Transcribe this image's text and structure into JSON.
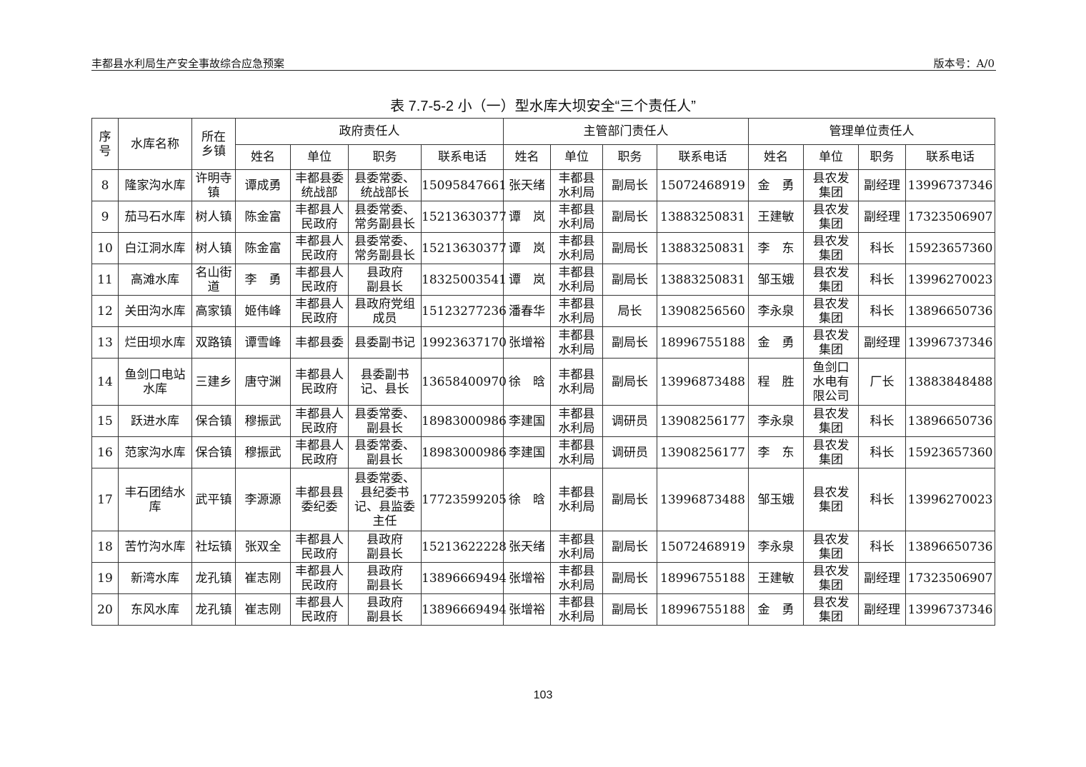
{
  "header": {
    "left": "丰都县水利局生产安全事故综合应急预案",
    "right": "版本号：A/0"
  },
  "title": "表 7.7-5-2  小（一）型水库大坝安全“三个责任人”",
  "columns": {
    "seq": "序\n号",
    "reservoir": "水库名称",
    "town": "所在\n乡镇",
    "groups": [
      "政府责任人",
      "主管部门责任人",
      "管理单位责任人"
    ],
    "sub": [
      "姓名",
      "单位",
      "职务",
      "联系电话"
    ]
  },
  "rows": [
    [
      "8",
      "隆家沟水库",
      "许明寺\n镇",
      "谭成勇",
      "丰都县委\n统战部",
      "县委常委、\n统战部长",
      "15095847661",
      "张天绪",
      "丰都县\n水利局",
      "副局长",
      "15072468919",
      "金　勇",
      "县农发\n集团",
      "副经理",
      "13996737346"
    ],
    [
      "9",
      "茄马石水库",
      "树人镇",
      "陈金富",
      "丰都县人\n民政府",
      "县委常委、\n常务副县长",
      "15213630377",
      "谭　岚",
      "丰都县\n水利局",
      "副局长",
      "13883250831",
      "王建敏",
      "县农发\n集团",
      "副经理",
      "17323506907"
    ],
    [
      "10",
      "白江洞水库",
      "树人镇",
      "陈金富",
      "丰都县人\n民政府",
      "县委常委、\n常务副县长",
      "15213630377",
      "谭　岚",
      "丰都县\n水利局",
      "副局长",
      "13883250831",
      "李　东",
      "县农发\n集团",
      "科长",
      "15923657360"
    ],
    [
      "11",
      "高滩水库",
      "名山街\n道",
      "李　勇",
      "丰都县人\n民政府",
      "县政府\n副县长",
      "18325003541",
      "谭　岚",
      "丰都县\n水利局",
      "副局长",
      "13883250831",
      "邹玉娥",
      "县农发\n集团",
      "科长",
      "13996270023"
    ],
    [
      "12",
      "关田沟水库",
      "高家镇",
      "姬伟峰",
      "丰都县人\n民政府",
      "县政府党组\n成员",
      "15123277236",
      "潘春华",
      "丰都县\n水利局",
      "局长",
      "13908256560",
      "李永泉",
      "县农发\n集团",
      "科长",
      "13896650736"
    ],
    [
      "13",
      "烂田坝水库",
      "双路镇",
      "谭雪峰",
      "丰都县委",
      "县委副书记",
      "19923637170",
      "张增裕",
      "丰都县\n水利局",
      "副局长",
      "18996755188",
      "金　勇",
      "县农发\n集团",
      "副经理",
      "13996737346"
    ],
    [
      "14",
      "鱼剑口电站\n水库",
      "三建乡",
      "唐守渊",
      "丰都县人\n民政府",
      "县委副书\n记、县长",
      "13658400970",
      "徐　晗",
      "丰都县\n水利局",
      "副局长",
      "13996873488",
      "程　胜",
      "鱼剑口\n水电有\n限公司",
      "厂长",
      "13883848488"
    ],
    [
      "15",
      "跃进水库",
      "保合镇",
      "穆振武",
      "丰都县人\n民政府",
      "县委常委、\n副县长",
      "18983000986",
      "李建国",
      "丰都县\n水利局",
      "调研员",
      "13908256177",
      "李永泉",
      "县农发\n集团",
      "科长",
      "13896650736"
    ],
    [
      "16",
      "范家沟水库",
      "保合镇",
      "穆振武",
      "丰都县人\n民政府",
      "县委常委、\n副县长",
      "18983000986",
      "李建国",
      "丰都县\n水利局",
      "调研员",
      "13908256177",
      "李　东",
      "县农发\n集团",
      "科长",
      "15923657360"
    ],
    [
      "17",
      "丰石团结水\n库",
      "武平镇",
      "李源源",
      "丰都县县\n委纪委",
      "县委常委、\n县纪委书\n记、县监委\n主任",
      "17723599205",
      "徐　晗",
      "丰都县\n水利局",
      "副局长",
      "13996873488",
      "邹玉娥",
      "县农发\n集团",
      "科长",
      "13996270023"
    ],
    [
      "18",
      "苦竹沟水库",
      "社坛镇",
      "张双全",
      "丰都县人\n民政府",
      "县政府\n副县长",
      "15213622228",
      "张天绪",
      "丰都县\n水利局",
      "副局长",
      "15072468919",
      "李永泉",
      "县农发\n集团",
      "科长",
      "13896650736"
    ],
    [
      "19",
      "新湾水库",
      "龙孔镇",
      "崔志刚",
      "丰都县人\n民政府",
      "县政府\n副县长",
      "13896669494",
      "张增裕",
      "丰都县\n水利局",
      "副局长",
      "18996755188",
      "王建敏",
      "县农发\n集团",
      "副经理",
      "17323506907"
    ],
    [
      "20",
      "东风水库",
      "龙孔镇",
      "崔志刚",
      "丰都县人\n民政府",
      "县政府\n副县长",
      "13896669494",
      "张增裕",
      "丰都县\n水利局",
      "副局长",
      "18996755188",
      "金　勇",
      "县农发\n集团",
      "副经理",
      "13996737346"
    ]
  ],
  "page_number": "103"
}
